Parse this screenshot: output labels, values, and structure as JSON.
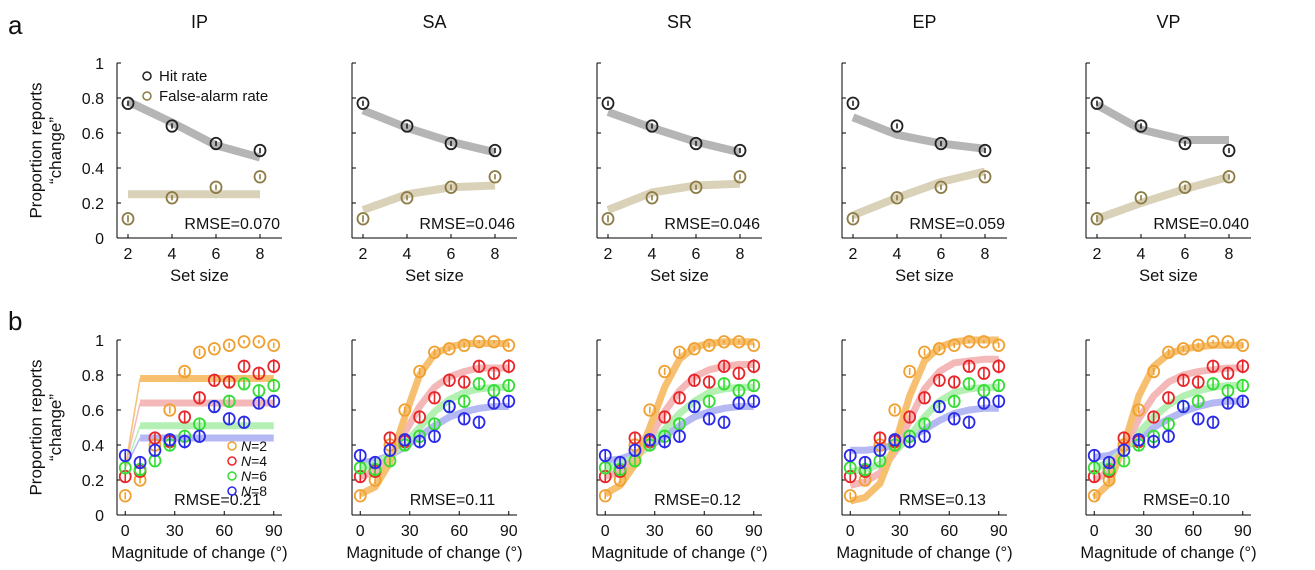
{
  "panel_labels": [
    "a",
    "b"
  ],
  "model_titles": [
    "IP",
    "SA",
    "SR",
    "EP",
    "VP"
  ],
  "chart_data": [
    {
      "type": "scatter",
      "row": "a",
      "ylabel_line1": "Proportion reports",
      "ylabel_line2": "“change”",
      "xlabel": "Set size",
      "x": [
        2,
        4,
        6,
        8
      ],
      "xlim": [
        1.5,
        9
      ],
      "ylim": [
        0,
        1
      ],
      "xticks": [
        "2",
        "4",
        "6",
        "8"
      ],
      "yticks": [
        "0",
        "0.2",
        "0.4",
        "0.6",
        "0.8",
        "1"
      ],
      "legend": {
        "placement": "top-left",
        "entries": [
          {
            "label": "Hit rate",
            "color": "#222222"
          },
          {
            "label": "False-alarm rate",
            "color": "#8c7b45"
          }
        ]
      },
      "data": {
        "hit": [
          0.77,
          0.64,
          0.54,
          0.5
        ],
        "false_alarm": [
          0.11,
          0.23,
          0.29,
          0.35
        ],
        "hit_err": [
          0.015,
          0.015,
          0.015,
          0.015
        ],
        "false_alarm_err": [
          0.02,
          0.015,
          0.015,
          0.015
        ]
      },
      "fits": {
        "IP": {
          "hit": [
            0.78,
            0.66,
            0.53,
            0.46
          ],
          "false_alarm": [
            0.25,
            0.25,
            0.25,
            0.25
          ],
          "rmse": "RMSE=0.070"
        },
        "SA": {
          "hit": [
            0.73,
            0.63,
            0.55,
            0.49
          ],
          "false_alarm": [
            0.16,
            0.25,
            0.29,
            0.3
          ],
          "rmse": "RMSE=0.046"
        },
        "SR": {
          "hit": [
            0.72,
            0.63,
            0.55,
            0.49
          ],
          "false_alarm": [
            0.16,
            0.26,
            0.3,
            0.31
          ],
          "rmse": "RMSE=0.046"
        },
        "EP": {
          "hit": [
            0.69,
            0.59,
            0.54,
            0.51
          ],
          "false_alarm": [
            0.13,
            0.23,
            0.32,
            0.38
          ],
          "rmse": "RMSE=0.059"
        },
        "VP": {
          "hit": [
            0.76,
            0.62,
            0.56,
            0.56
          ],
          "false_alarm": [
            0.11,
            0.2,
            0.28,
            0.35
          ],
          "rmse": "RMSE=0.040"
        }
      },
      "colors": {
        "hit_marker": "#222222",
        "fa_marker": "#8c7b45",
        "hit_fit": "#b5b5b5",
        "fa_fit": "#d9d2b8"
      }
    },
    {
      "type": "scatter",
      "row": "b",
      "ylabel_line1": "Proportion reports",
      "ylabel_line2": "“change”",
      "xlabel": "Magnitude of change (°)",
      "x": [
        0,
        9,
        18,
        27,
        36,
        45,
        54,
        63,
        72,
        81,
        90
      ],
      "xlim": [
        -5,
        95
      ],
      "ylim": [
        0,
        1
      ],
      "xticks": [
        "0",
        "30",
        "60",
        "90"
      ],
      "yticks": [
        "0",
        "0.2",
        "0.4",
        "0.6",
        "0.8",
        "1"
      ],
      "legend": {
        "placement": "lower-right",
        "entries": [
          {
            "label": "N=2",
            "color": "#f0a030"
          },
          {
            "label": "N=4",
            "color": "#e8262a"
          },
          {
            "label": "N=6",
            "color": "#33dd33"
          },
          {
            "label": "N=8",
            "color": "#2a2ae8"
          }
        ]
      },
      "series": [
        {
          "name": "N=2",
          "values": [
            0.11,
            0.2,
            0.4,
            0.6,
            0.82,
            0.93,
            0.95,
            0.97,
            0.99,
            0.99,
            0.97
          ],
          "err": [
            0.02,
            0.02,
            0.02,
            0.02,
            0.02,
            0.02,
            0.015,
            0.015,
            0.01,
            0.01,
            0.015
          ]
        },
        {
          "name": "N=4",
          "values": [
            0.22,
            0.25,
            0.44,
            0.42,
            0.56,
            0.67,
            0.77,
            0.76,
            0.85,
            0.81,
            0.85
          ],
          "err": [
            0.03,
            0.03,
            0.03,
            0.03,
            0.03,
            0.03,
            0.03,
            0.03,
            0.03,
            0.03,
            0.04
          ]
        },
        {
          "name": "N=6",
          "values": [
            0.27,
            0.26,
            0.31,
            0.4,
            0.45,
            0.52,
            0.62,
            0.65,
            0.75,
            0.71,
            0.74
          ],
          "err": [
            0.03,
            0.03,
            0.03,
            0.03,
            0.03,
            0.03,
            0.03,
            0.03,
            0.03,
            0.03,
            0.03
          ]
        },
        {
          "name": "N=8",
          "values": [
            0.34,
            0.3,
            0.37,
            0.43,
            0.42,
            0.45,
            0.62,
            0.55,
            0.53,
            0.64,
            0.65
          ],
          "err": [
            0.03,
            0.03,
            0.03,
            0.03,
            0.04,
            0.03,
            0.03,
            0.03,
            0.03,
            0.03,
            0.03
          ]
        }
      ],
      "fit_x": [
        0,
        9,
        18,
        27,
        36,
        45,
        54,
        63,
        72,
        81,
        90
      ],
      "fits": {
        "IP": {
          "rmse": "RMSE=0.21",
          "N=2": [
            0.27,
            0.78,
            0.78,
            0.78,
            0.78,
            0.78,
            0.78,
            0.78,
            0.78,
            0.78,
            0.78
          ],
          "N=4": [
            0.27,
            0.64,
            0.64,
            0.64,
            0.64,
            0.64,
            0.64,
            0.64,
            0.64,
            0.64,
            0.64
          ],
          "N=6": [
            0.27,
            0.51,
            0.51,
            0.51,
            0.51,
            0.51,
            0.51,
            0.51,
            0.51,
            0.51,
            0.51
          ],
          "N=8": [
            0.27,
            0.44,
            0.44,
            0.44,
            0.44,
            0.44,
            0.44,
            0.44,
            0.44,
            0.44,
            0.44
          ]
        },
        "SA": {
          "rmse": "RMSE=0.11",
          "N=2": [
            0.12,
            0.16,
            0.3,
            0.56,
            0.8,
            0.92,
            0.96,
            0.98,
            0.98,
            0.98,
            0.98
          ],
          "N=4": [
            0.22,
            0.25,
            0.33,
            0.47,
            0.62,
            0.73,
            0.79,
            0.82,
            0.84,
            0.84,
            0.84
          ],
          "N=6": [
            0.27,
            0.29,
            0.34,
            0.41,
            0.5,
            0.59,
            0.66,
            0.7,
            0.72,
            0.73,
            0.73
          ],
          "N=8": [
            0.3,
            0.31,
            0.34,
            0.39,
            0.45,
            0.51,
            0.56,
            0.59,
            0.61,
            0.62,
            0.62
          ]
        },
        "SR": {
          "rmse": "RMSE=0.12",
          "N=2": [
            0.12,
            0.17,
            0.29,
            0.5,
            0.73,
            0.89,
            0.96,
            0.98,
            0.99,
            0.99,
            0.99
          ],
          "N=4": [
            0.22,
            0.25,
            0.32,
            0.44,
            0.59,
            0.71,
            0.79,
            0.83,
            0.85,
            0.86,
            0.86
          ],
          "N=6": [
            0.27,
            0.29,
            0.33,
            0.4,
            0.49,
            0.58,
            0.65,
            0.7,
            0.72,
            0.73,
            0.73
          ],
          "N=8": [
            0.31,
            0.32,
            0.35,
            0.39,
            0.45,
            0.51,
            0.56,
            0.59,
            0.61,
            0.62,
            0.62
          ]
        },
        "EP": {
          "rmse": "RMSE=0.13",
          "N=2": [
            0.08,
            0.1,
            0.18,
            0.4,
            0.68,
            0.88,
            0.96,
            0.99,
            1.0,
            1.0,
            1.0
          ],
          "N=4": [
            0.17,
            0.19,
            0.24,
            0.36,
            0.54,
            0.72,
            0.82,
            0.87,
            0.88,
            0.89,
            0.89
          ],
          "N=6": [
            0.25,
            0.26,
            0.29,
            0.36,
            0.45,
            0.56,
            0.65,
            0.7,
            0.72,
            0.73,
            0.73
          ],
          "N=8": [
            0.37,
            0.37,
            0.38,
            0.4,
            0.44,
            0.49,
            0.54,
            0.58,
            0.6,
            0.61,
            0.61
          ]
        },
        "VP": {
          "rmse": "RMSE=0.10",
          "N=2": [
            0.1,
            0.18,
            0.4,
            0.68,
            0.85,
            0.92,
            0.95,
            0.96,
            0.97,
            0.97,
            0.97
          ],
          "N=4": [
            0.2,
            0.25,
            0.38,
            0.55,
            0.68,
            0.76,
            0.8,
            0.82,
            0.83,
            0.84,
            0.84
          ],
          "N=6": [
            0.27,
            0.3,
            0.37,
            0.47,
            0.56,
            0.63,
            0.68,
            0.71,
            0.73,
            0.74,
            0.74
          ],
          "N=8": [
            0.33,
            0.34,
            0.38,
            0.44,
            0.5,
            0.55,
            0.59,
            0.62,
            0.64,
            0.65,
            0.65
          ]
        }
      },
      "colors": {
        "N=2": "#f0a030",
        "N=4": "#e8262a",
        "N=6": "#33dd33",
        "N=8": "#2a2ae8",
        "N=2_fit": "#f6c070",
        "N=4_fit": "#f5b8b8",
        "N=6_fit": "#b4f0b4",
        "N=8_fit": "#b4b8f3"
      }
    }
  ]
}
